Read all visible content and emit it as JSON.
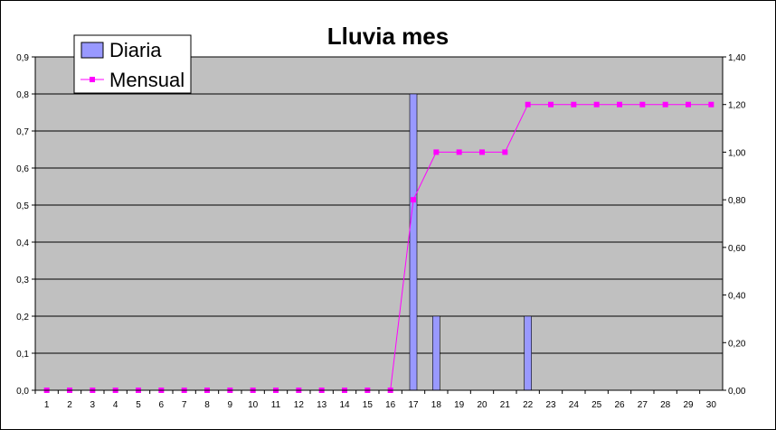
{
  "chart_data": {
    "type": "bar",
    "title": "Lluvia mes",
    "categories": [
      "1",
      "2",
      "3",
      "4",
      "5",
      "6",
      "7",
      "8",
      "9",
      "10",
      "11",
      "12",
      "13",
      "14",
      "15",
      "16",
      "17",
      "18",
      "19",
      "20",
      "21",
      "22",
      "23",
      "24",
      "25",
      "26",
      "27",
      "28",
      "29",
      "30"
    ],
    "series": [
      {
        "name": "Diaria",
        "type": "bar",
        "axis": "left",
        "color": "#9999FF",
        "values": [
          0,
          0,
          0,
          0,
          0,
          0,
          0,
          0,
          0,
          0,
          0,
          0,
          0,
          0,
          0,
          0,
          0.8,
          0.2,
          0,
          0,
          0,
          0.2,
          0,
          0,
          0,
          0,
          0,
          0,
          0,
          0
        ]
      },
      {
        "name": "Mensual",
        "type": "line",
        "axis": "right",
        "color": "#FF00FF",
        "values": [
          0,
          0,
          0,
          0,
          0,
          0,
          0,
          0,
          0,
          0,
          0,
          0,
          0,
          0,
          0,
          0,
          0.8,
          1.0,
          1.0,
          1.0,
          1.0,
          1.2,
          1.2,
          1.2,
          1.2,
          1.2,
          1.2,
          1.2,
          1.2,
          1.2
        ]
      }
    ],
    "y_left": {
      "ylim": [
        0,
        0.9
      ],
      "ticks": [
        "0,0",
        "0,1",
        "0,2",
        "0,3",
        "0,4",
        "0,5",
        "0,6",
        "0,7",
        "0,8",
        "0,9"
      ]
    },
    "y_right": {
      "ylim": [
        0,
        1.4
      ],
      "ticks": [
        "0,00",
        "0,20",
        "0,40",
        "0,60",
        "0,80",
        "1,00",
        "1,20",
        "1,40"
      ]
    },
    "grid": true,
    "plot_background": "#C0C0C0",
    "legend_position": "top-left"
  }
}
